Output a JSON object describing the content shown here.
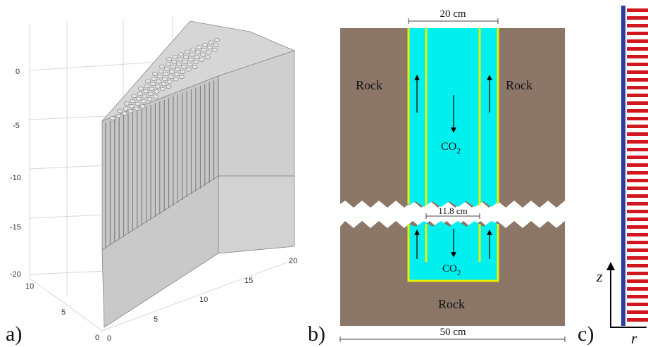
{
  "panel_a": {
    "label": "a)",
    "z_ticks": [
      "0",
      "-5",
      "-10",
      "-15",
      "-20"
    ],
    "y_ticks": [
      "10",
      "5",
      "0"
    ],
    "x_ticks": [
      "0",
      "5",
      "10",
      "15",
      "20"
    ]
  },
  "panel_b": {
    "label": "b)",
    "top_width": "20 cm",
    "inner_width": "11.8 cm",
    "bottom_width": "50 cm",
    "rock_left": "Rock",
    "rock_right": "Rock",
    "rock_bottom": "Rock",
    "fluid_top": "CO",
    "fluid_top_sub": "2",
    "fluid_bottom": "CO",
    "fluid_bottom_sub": "2",
    "colors": {
      "rock": "#8B7668",
      "fluid": "#00F0F0",
      "pipe": "#E8F000"
    }
  },
  "panel_c": {
    "label": "c)",
    "axis_z": "z",
    "axis_r": "r",
    "colors": {
      "core": "#2B3FA0",
      "stripe": "#D0171F"
    }
  }
}
